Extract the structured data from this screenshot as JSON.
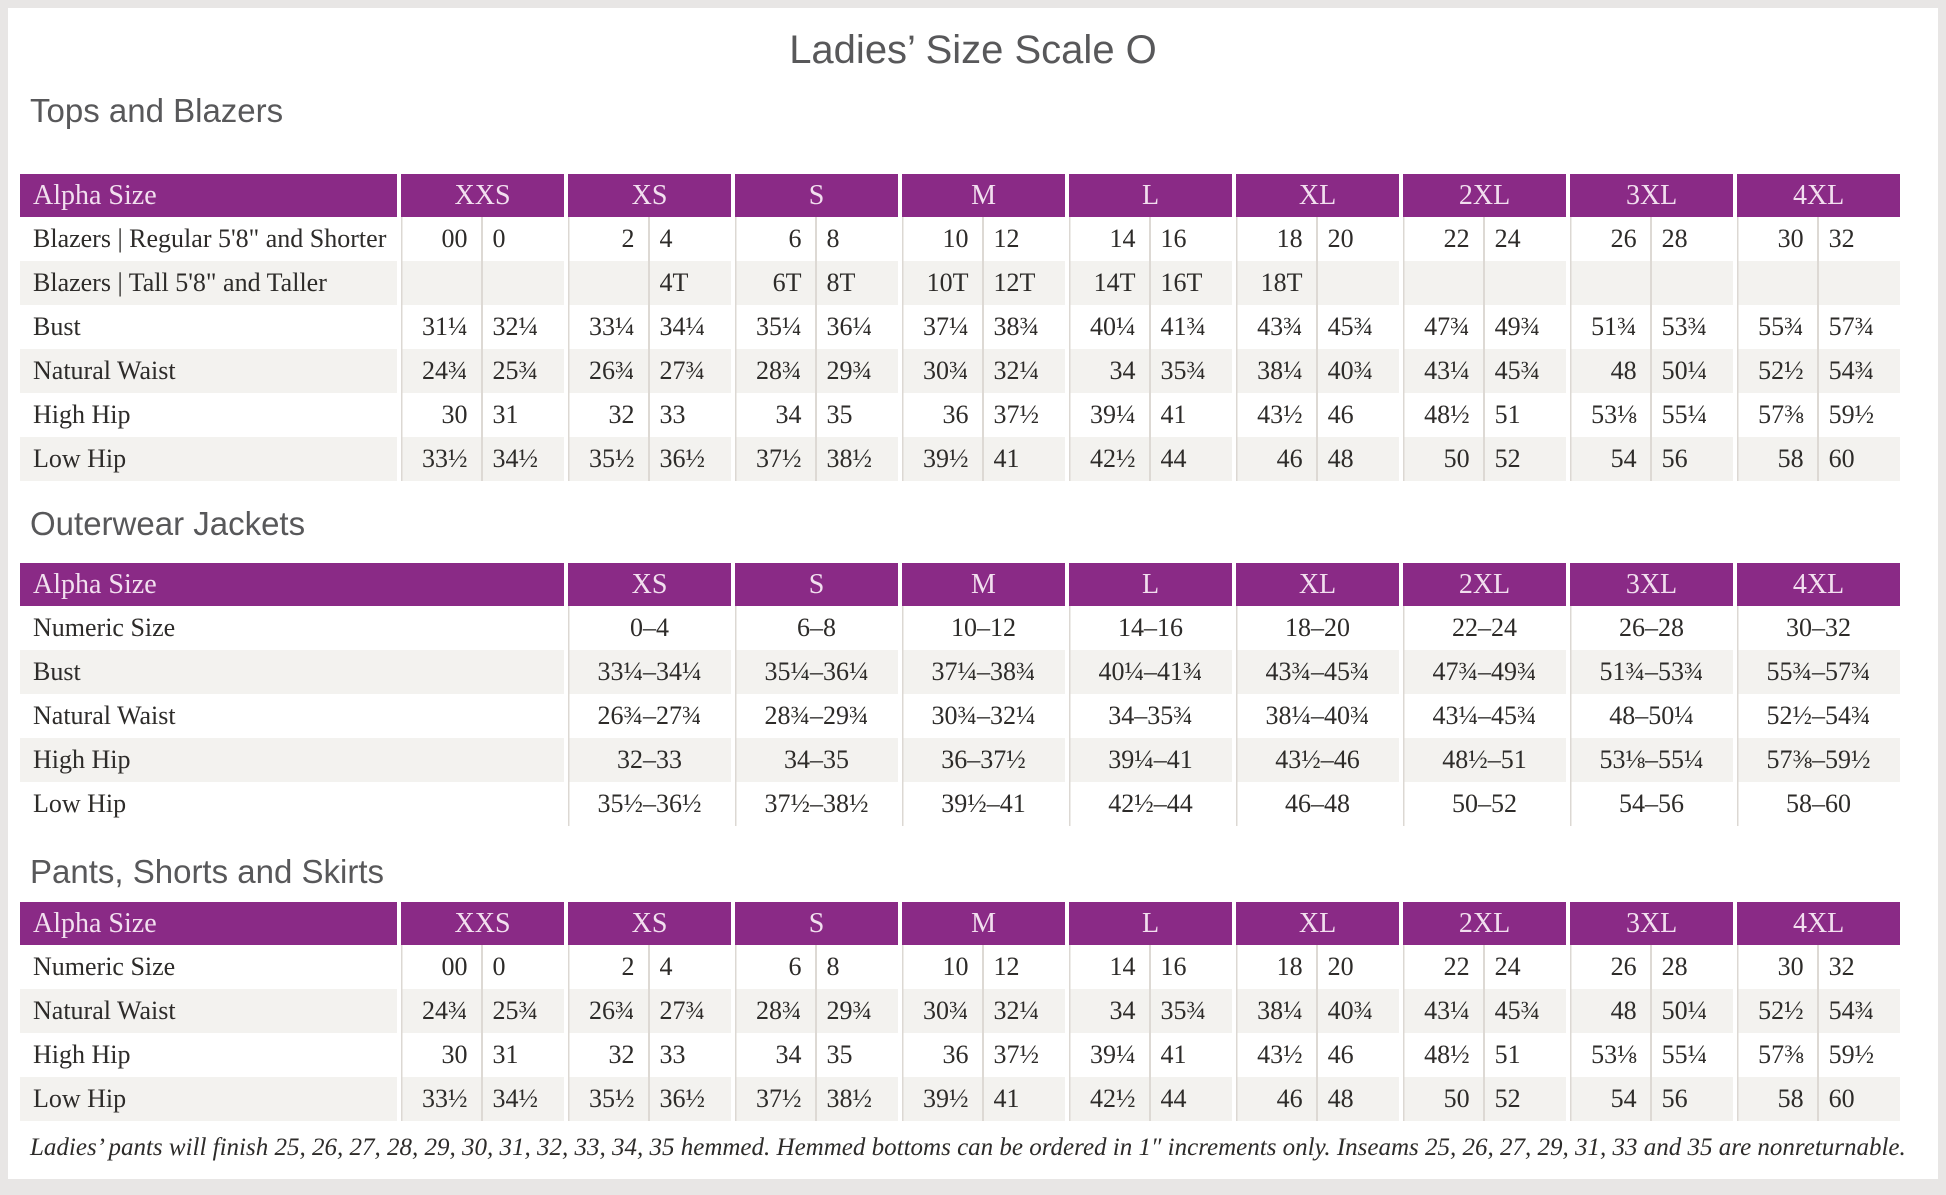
{
  "page": {
    "title": "Ladies’ Size Scale O",
    "footnote": "Ladies’ pants will finish 25, 26, 27, 28, 29, 30, 31, 32, 33, 34, 35 hemmed. Hemmed bottoms can be ordered in 1″ increments only. Inseams 25, 26, 27, 29, 31, 33 and 35 are nonreturnable."
  },
  "colors": {
    "header_purple": "#8a2a86",
    "header_text": "#f2dfef",
    "row_stripe": "#f3f2ef",
    "heading_gray": "#58585a",
    "body_text": "#2d2b29"
  },
  "tables": [
    {
      "heading": "Tops and Blazers",
      "type": "paired",
      "corner_label": "Alpha Size",
      "sizes": [
        "XXS",
        "XS",
        "S",
        "M",
        "L",
        "XL",
        "2XL",
        "3XL",
        "4XL"
      ],
      "rows": [
        {
          "label": "Blazers | Regular 5'8\" and Shorter",
          "values": [
            [
              "00",
              "0"
            ],
            [
              "2",
              "4"
            ],
            [
              "6",
              "8"
            ],
            [
              "10",
              "12"
            ],
            [
              "14",
              "16"
            ],
            [
              "18",
              "20"
            ],
            [
              "22",
              "24"
            ],
            [
              "26",
              "28"
            ],
            [
              "30",
              "32"
            ]
          ]
        },
        {
          "label": "Blazers | Tall 5'8\" and Taller",
          "values": [
            [
              "",
              ""
            ],
            [
              "",
              "4T"
            ],
            [
              "6T",
              "8T"
            ],
            [
              "10T",
              "12T"
            ],
            [
              "14T",
              "16T"
            ],
            [
              "18T",
              ""
            ],
            [
              "",
              ""
            ],
            [
              "",
              ""
            ],
            [
              "",
              ""
            ]
          ]
        },
        {
          "label": "Bust",
          "values": [
            [
              "31¼",
              "32¼"
            ],
            [
              "33¼",
              "34¼"
            ],
            [
              "35¼",
              "36¼"
            ],
            [
              "37¼",
              "38¾"
            ],
            [
              "40¼",
              "41¾"
            ],
            [
              "43¾",
              "45¾"
            ],
            [
              "47¾",
              "49¾"
            ],
            [
              "51¾",
              "53¾"
            ],
            [
              "55¾",
              "57¾"
            ]
          ]
        },
        {
          "label": "Natural Waist",
          "values": [
            [
              "24¾",
              "25¾"
            ],
            [
              "26¾",
              "27¾"
            ],
            [
              "28¾",
              "29¾"
            ],
            [
              "30¾",
              "32¼"
            ],
            [
              "34",
              "35¾"
            ],
            [
              "38¼",
              "40¾"
            ],
            [
              "43¼",
              "45¾"
            ],
            [
              "48",
              "50¼"
            ],
            [
              "52½",
              "54¾"
            ]
          ]
        },
        {
          "label": "High Hip",
          "values": [
            [
              "30",
              "31"
            ],
            [
              "32",
              "33"
            ],
            [
              "34",
              "35"
            ],
            [
              "36",
              "37½"
            ],
            [
              "39¼",
              "41"
            ],
            [
              "43½",
              "46"
            ],
            [
              "48½",
              "51"
            ],
            [
              "53⅛",
              "55¼"
            ],
            [
              "57⅜",
              "59½"
            ]
          ]
        },
        {
          "label": "Low Hip",
          "values": [
            [
              "33½",
              "34½"
            ],
            [
              "35½",
              "36½"
            ],
            [
              "37½",
              "38½"
            ],
            [
              "39½",
              "41"
            ],
            [
              "42½",
              "44"
            ],
            [
              "46",
              "48"
            ],
            [
              "50",
              "52"
            ],
            [
              "54",
              "56"
            ],
            [
              "58",
              "60"
            ]
          ]
        }
      ]
    },
    {
      "heading": "Outerwear Jackets",
      "type": "range",
      "corner_label": "Alpha Size",
      "sizes": [
        "XS",
        "S",
        "M",
        "L",
        "XL",
        "2XL",
        "3XL",
        "4XL"
      ],
      "rows": [
        {
          "label": "Numeric Size",
          "values": [
            "0–4",
            "6–8",
            "10–12",
            "14–16",
            "18–20",
            "22–24",
            "26–28",
            "30–32"
          ]
        },
        {
          "label": "Bust",
          "values": [
            "33¼–34¼",
            "35¼–36¼",
            "37¼–38¾",
            "40¼–41¾",
            "43¾–45¾",
            "47¾–49¾",
            "51¾–53¾",
            "55¾–57¾"
          ]
        },
        {
          "label": "Natural Waist",
          "values": [
            "26¾–27¾",
            "28¾–29¾",
            "30¾–32¼",
            "34–35¾",
            "38¼–40¾",
            "43¼–45¾",
            "48–50¼",
            "52½–54¾"
          ]
        },
        {
          "label": "High Hip",
          "values": [
            "32–33",
            "34–35",
            "36–37½",
            "39¼–41",
            "43½–46",
            "48½–51",
            "53⅛–55¼",
            "57⅜–59½"
          ]
        },
        {
          "label": "Low Hip",
          "values": [
            "35½–36½",
            "37½–38½",
            "39½–41",
            "42½–44",
            "46–48",
            "50–52",
            "54–56",
            "58–60"
          ]
        }
      ]
    },
    {
      "heading": "Pants, Shorts and Skirts",
      "type": "paired",
      "corner_label": "Alpha Size",
      "sizes": [
        "XXS",
        "XS",
        "S",
        "M",
        "L",
        "XL",
        "2XL",
        "3XL",
        "4XL"
      ],
      "rows": [
        {
          "label": "Numeric Size",
          "values": [
            [
              "00",
              "0"
            ],
            [
              "2",
              "4"
            ],
            [
              "6",
              "8"
            ],
            [
              "10",
              "12"
            ],
            [
              "14",
              "16"
            ],
            [
              "18",
              "20"
            ],
            [
              "22",
              "24"
            ],
            [
              "26",
              "28"
            ],
            [
              "30",
              "32"
            ]
          ]
        },
        {
          "label": "Natural Waist",
          "values": [
            [
              "24¾",
              "25¾"
            ],
            [
              "26¾",
              "27¾"
            ],
            [
              "28¾",
              "29¾"
            ],
            [
              "30¾",
              "32¼"
            ],
            [
              "34",
              "35¾"
            ],
            [
              "38¼",
              "40¾"
            ],
            [
              "43¼",
              "45¾"
            ],
            [
              "48",
              "50¼"
            ],
            [
              "52½",
              "54¾"
            ]
          ]
        },
        {
          "label": "High Hip",
          "values": [
            [
              "30",
              "31"
            ],
            [
              "32",
              "33"
            ],
            [
              "34",
              "35"
            ],
            [
              "36",
              "37½"
            ],
            [
              "39¼",
              "41"
            ],
            [
              "43½",
              "46"
            ],
            [
              "48½",
              "51"
            ],
            [
              "53⅛",
              "55¼"
            ],
            [
              "57⅜",
              "59½"
            ]
          ]
        },
        {
          "label": "Low Hip",
          "values": [
            [
              "33½",
              "34½"
            ],
            [
              "35½",
              "36½"
            ],
            [
              "37½",
              "38½"
            ],
            [
              "39½",
              "41"
            ],
            [
              "42½",
              "44"
            ],
            [
              "46",
              "48"
            ],
            [
              "50",
              "52"
            ],
            [
              "54",
              "56"
            ],
            [
              "58",
              "60"
            ]
          ]
        }
      ]
    }
  ]
}
